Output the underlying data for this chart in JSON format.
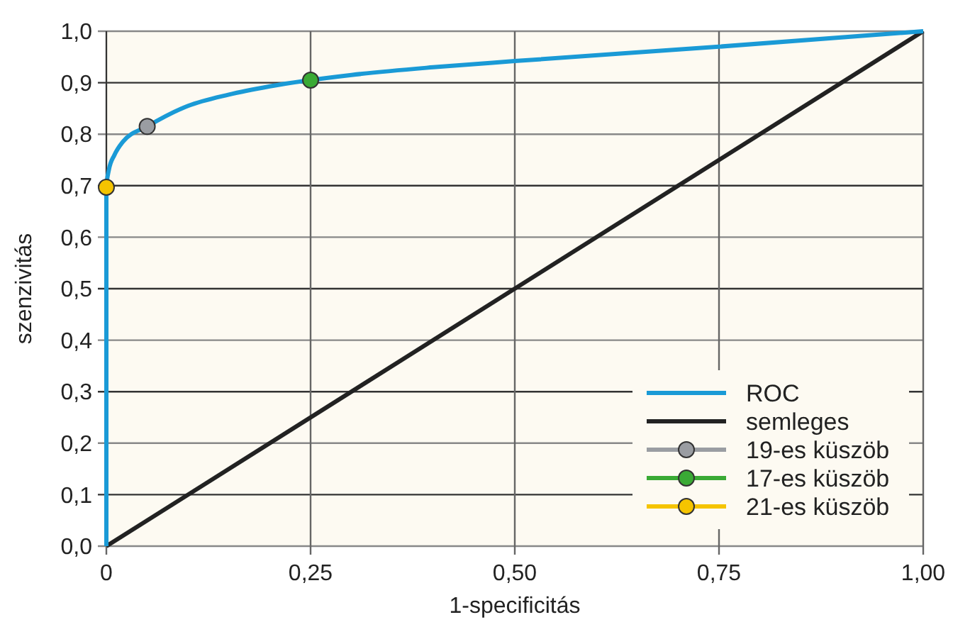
{
  "chart_data": {
    "type": "line",
    "xlabel": "1-specificitás",
    "ylabel": "szenzivitás",
    "xlim": [
      0,
      1
    ],
    "ylim": [
      0,
      1
    ],
    "xticks": [
      0,
      {
        "value": 0.25,
        "label": "0,25"
      },
      {
        "value": 0.5,
        "label": "0,50"
      },
      {
        "value": 0.75,
        "label": "0,75"
      },
      {
        "value": 1,
        "label": "1,00"
      }
    ],
    "yticks": [
      {
        "value": 0,
        "label": "0,0"
      },
      {
        "value": 0.1,
        "label": "0,1"
      },
      {
        "value": 0.2,
        "label": "0,2"
      },
      {
        "value": 0.3,
        "label": "0,3"
      },
      {
        "value": 0.4,
        "label": "0,4"
      },
      {
        "value": 0.5,
        "label": "0,5"
      },
      {
        "value": 0.6,
        "label": "0,6"
      },
      {
        "value": 0.7,
        "label": "0,7"
      },
      {
        "value": 0.8,
        "label": "0,8"
      },
      {
        "value": 0.9,
        "label": "0,9"
      },
      {
        "value": 1,
        "label": "1,0"
      }
    ],
    "grid": true,
    "legend": "bottom right",
    "line_style": "solid",
    "series": [
      {
        "name": "ROC",
        "color": "#1a9ad6",
        "x": [
          0,
          0,
          0.003,
          0.01,
          0.02,
          0.05,
          0.1,
          0.15,
          0.2,
          0.3,
          0.4,
          0.5,
          0.75,
          1
        ],
        "values": [
          0,
          0.697,
          0.73,
          0.76,
          0.785,
          0.815,
          0.855,
          0.877,
          0.893,
          0.915,
          0.93,
          0.942,
          0.97,
          1
        ]
      },
      {
        "name": "semleges",
        "color": "#222222",
        "x": [
          0,
          1
        ],
        "values": [
          0,
          1
        ]
      },
      {
        "name": "19-es küszöb",
        "type": "scatter",
        "marker": "circle",
        "color": "#9a9da2",
        "x": [
          0.05
        ],
        "values": [
          0.815
        ]
      },
      {
        "name": "17-es küszöb",
        "type": "scatter",
        "marker": "circle",
        "color": "#3aaa35",
        "x": [
          0.25
        ],
        "values": [
          0.905
        ]
      },
      {
        "name": "21-es küszöb",
        "type": "scatter",
        "marker": "circle",
        "color": "#f5c400",
        "x": [
          0
        ],
        "values": [
          0.697
        ]
      }
    ]
  }
}
